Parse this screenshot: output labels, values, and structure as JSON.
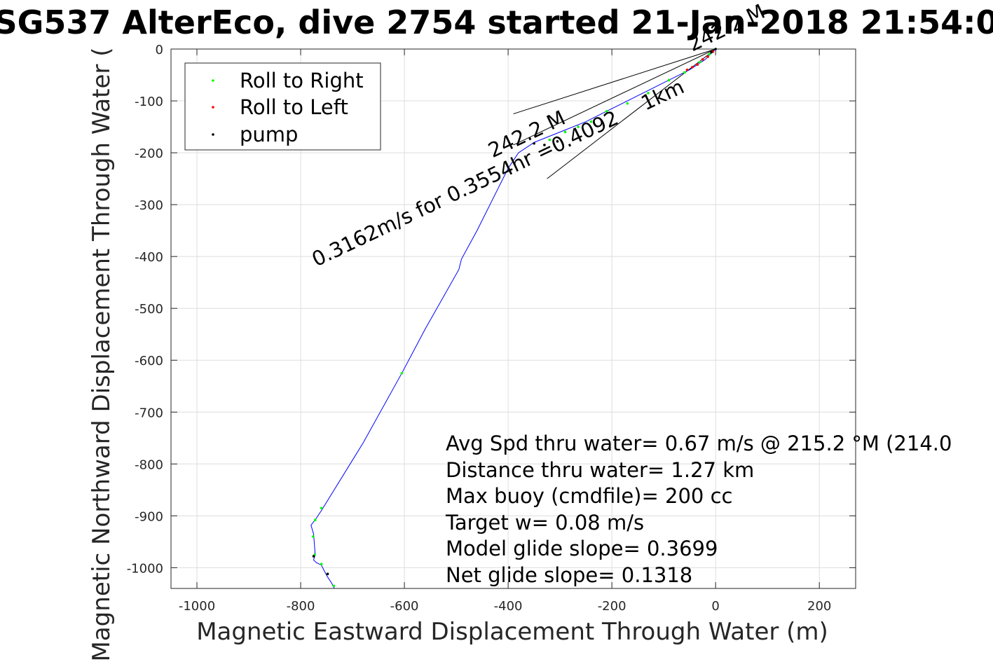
{
  "chart_data": {
    "type": "line",
    "title": "SG537 AlterEco, dive 2754 started 21-Jan-2018 21:54:0",
    "xlabel": "Magnetic Eastward Displacement Through Water (m)",
    "ylabel": "Magnetic Northward Displacement Through Water (",
    "xlim": [
      -1050,
      270
    ],
    "ylim": [
      -1040,
      0
    ],
    "x_ticks": [
      -1000,
      -800,
      -600,
      -400,
      -200,
      0,
      200
    ],
    "x_tick_labels": [
      "-1000",
      "-800",
      "-600",
      "-400",
      "-200",
      "0",
      "200"
    ],
    "y_ticks": [
      0,
      -100,
      -200,
      -300,
      -400,
      -500,
      -600,
      -700,
      -800,
      -900,
      -1000
    ],
    "y_tick_labels": [
      "0",
      "-100",
      "-200",
      "-300",
      "-400",
      "-500",
      "-600",
      "-700",
      "-800",
      "-900",
      "-1000"
    ],
    "grid": true,
    "legend_position": "top-left",
    "legend": [
      {
        "label": "Roll to Right",
        "color": "#00ff00"
      },
      {
        "label": "Roll to Left",
        "color": "#ff0000"
      },
      {
        "label": "pump",
        "color": "#000000"
      }
    ],
    "track_color": "#0000ff",
    "track": {
      "x": [
        0,
        -20,
        -50,
        -100,
        -150,
        -200,
        -250,
        -300,
        -350,
        -380,
        -400,
        -430,
        -460,
        -490,
        -495,
        -560,
        -605,
        -680,
        -760,
        -770,
        -780,
        -775,
        -772,
        -775,
        -770,
        -760,
        -755,
        -748,
        -740,
        -735
      ],
      "y": [
        0,
        -20,
        -40,
        -65,
        -90,
        -115,
        -140,
        -160,
        -180,
        -200,
        -230,
        -290,
        -350,
        -405,
        -425,
        -540,
        -625,
        -760,
        -890,
        -905,
        -918,
        -935,
        -975,
        -985,
        -990,
        -995,
        -1005,
        -1018,
        -1030,
        -1040
      ]
    },
    "roll_right": {
      "x": [
        -12,
        -30,
        -60,
        -90,
        -130,
        -170,
        -210,
        -240,
        -265,
        -290,
        -320,
        -605,
        -760,
        -772,
        -776,
        -773,
        -760,
        -748,
        -736
      ],
      "y": [
        -10,
        -25,
        -45,
        -60,
        -85,
        -105,
        -120,
        -140,
        -150,
        -160,
        -175,
        -625,
        -885,
        -908,
        -940,
        -975,
        -993,
        -1012,
        -1035
      ]
    },
    "roll_left": {
      "x": [
        -5,
        -15,
        -25,
        -35,
        -45,
        -55
      ],
      "y": [
        -5,
        -15,
        -20,
        -30,
        -35,
        -40
      ]
    },
    "pump": {
      "x": [
        0,
        -8,
        -305,
        -330,
        -350,
        -775,
        -748
      ],
      "y": [
        0,
        -6,
        -178,
        -185,
        -182,
        -978,
        -1012
      ]
    },
    "heading_line": {
      "label": "0.3162m/s for 0.3554hr =0.4092 1km",
      "label_text": "0.3162m/s for 0.3554hr =0.4092",
      "label_text2": "1km",
      "heading_label": "242.2 M",
      "end": [
        -390,
        -185
      ],
      "cone_a": [
        -390,
        -125
      ],
      "cone_b": [
        -325,
        -250
      ]
    },
    "annotations": [
      "Avg Spd thru water=  0.67 m/s @ 215.2 °M (214.0",
      "Distance thru water=  1.27 km",
      "Max buoy (cmdfile)= 200 cc",
      "Target w= 0.08 m/s",
      "Model glide slope= 0.3699",
      "Net glide slope= 0.1318"
    ]
  }
}
